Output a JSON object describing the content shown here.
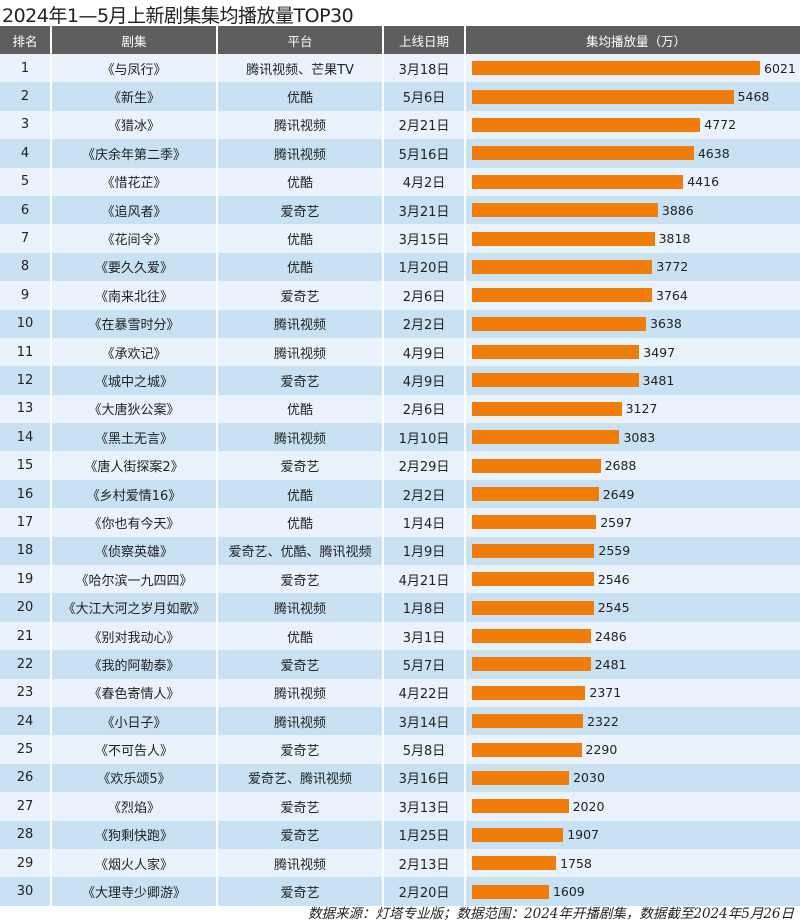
{
  "chart_data": {
    "type": "bar",
    "title": "2024年1—5月上新剧集集均播放量TOP30",
    "columns": [
      "排名",
      "剧集",
      "平台",
      "上线日期",
      "集均播放量（万）"
    ],
    "bar_color": "#f07d0a",
    "header_color": "#5e5e5e",
    "rows": [
      {
        "rank": "1",
        "title": "《与凤行》",
        "platform": "腾讯视频、芒果TV",
        "date": "3月18日",
        "value": 6021
      },
      {
        "rank": "2",
        "title": "《新生》",
        "platform": "优酷",
        "date": "5月6日",
        "value": 5468
      },
      {
        "rank": "3",
        "title": "《猎冰》",
        "platform": "腾讯视频",
        "date": "2月21日",
        "value": 4772
      },
      {
        "rank": "4",
        "title": "《庆余年第二季》",
        "platform": "腾讯视频",
        "date": "5月16日",
        "value": 4638
      },
      {
        "rank": "5",
        "title": "《惜花芷》",
        "platform": "优酷",
        "date": "4月2日",
        "value": 4416
      },
      {
        "rank": "6",
        "title": "《追风者》",
        "platform": "爱奇艺",
        "date": "3月21日",
        "value": 3886
      },
      {
        "rank": "7",
        "title": "《花间令》",
        "platform": "优酷",
        "date": "3月15日",
        "value": 3818
      },
      {
        "rank": "8",
        "title": "《要久久爱》",
        "platform": "优酷",
        "date": "1月20日",
        "value": 3772
      },
      {
        "rank": "9",
        "title": "《南来北往》",
        "platform": "爱奇艺",
        "date": "2月6日",
        "value": 3764
      },
      {
        "rank": "10",
        "title": "《在暴雪时分》",
        "platform": "腾讯视频",
        "date": "2月2日",
        "value": 3638
      },
      {
        "rank": "11",
        "title": "《承欢记》",
        "platform": "腾讯视频",
        "date": "4月9日",
        "value": 3497
      },
      {
        "rank": "12",
        "title": "《城中之城》",
        "platform": "爱奇艺",
        "date": "4月9日",
        "value": 3481
      },
      {
        "rank": "13",
        "title": "《大唐狄公案》",
        "platform": "优酷",
        "date": "2月6日",
        "value": 3127
      },
      {
        "rank": "14",
        "title": "《黑土无言》",
        "platform": "腾讯视频",
        "date": "1月10日",
        "value": 3083
      },
      {
        "rank": "15",
        "title": "《唐人街探案2》",
        "platform": "爱奇艺",
        "date": "2月29日",
        "value": 2688
      },
      {
        "rank": "16",
        "title": "《乡村爱情16》",
        "platform": "优酷",
        "date": "2月2日",
        "value": 2649
      },
      {
        "rank": "17",
        "title": "《你也有今天》",
        "platform": "优酷",
        "date": "1月4日",
        "value": 2597
      },
      {
        "rank": "18",
        "title": "《侦察英雄》",
        "platform": "爱奇艺、优酷、腾讯视频",
        "date": "1月9日",
        "value": 2559
      },
      {
        "rank": "19",
        "title": "《哈尔滨一九四四》",
        "platform": "爱奇艺",
        "date": "4月21日",
        "value": 2546
      },
      {
        "rank": "20",
        "title": "《大江大河之岁月如歌》",
        "platform": "腾讯视频",
        "date": "1月8日",
        "value": 2545
      },
      {
        "rank": "21",
        "title": "《别对我动心》",
        "platform": "优酷",
        "date": "3月1日",
        "value": 2486
      },
      {
        "rank": "22",
        "title": "《我的阿勒泰》",
        "platform": "爱奇艺",
        "date": "5月7日",
        "value": 2481
      },
      {
        "rank": "23",
        "title": "《春色寄情人》",
        "platform": "腾讯视频",
        "date": "4月22日",
        "value": 2371
      },
      {
        "rank": "24",
        "title": "《小日子》",
        "platform": "腾讯视频",
        "date": "3月14日",
        "value": 2322
      },
      {
        "rank": "25",
        "title": "《不可告人》",
        "platform": "爱奇艺",
        "date": "5月8日",
        "value": 2290
      },
      {
        "rank": "26",
        "title": "《欢乐颂5》",
        "platform": "爱奇艺、腾讯视频",
        "date": "3月16日",
        "value": 2030
      },
      {
        "rank": "27",
        "title": "《烈焰》",
        "platform": "爱奇艺",
        "date": "3月13日",
        "value": 2020
      },
      {
        "rank": "28",
        "title": "《狗剩快跑》",
        "platform": "爱奇艺",
        "date": "1月25日",
        "value": 1907
      },
      {
        "rank": "29",
        "title": "《烟火人家》",
        "platform": "腾讯视频",
        "date": "2月13日",
        "value": 1758
      },
      {
        "rank": "30",
        "title": "《大理寺少卿游》",
        "platform": "爱奇艺",
        "date": "2月20日",
        "value": 1609
      }
    ],
    "footer": "数据来源：灯塔专业版；数据范围：2024年开播剧集，数据截至2024年5月26日"
  }
}
